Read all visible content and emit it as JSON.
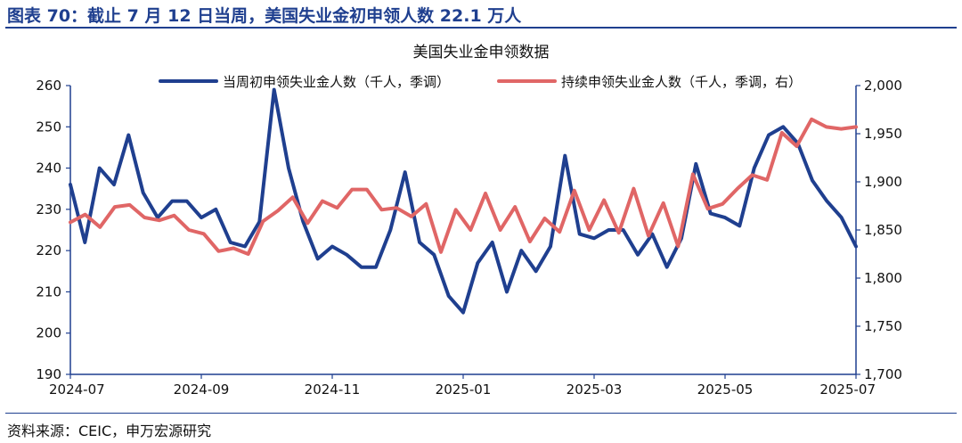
{
  "figure": {
    "title": "图表 70：截止 7 月 12 日当周，美国失业金初申领人数 22.1 万人",
    "source": "资料来源：CEIC，申万宏源研究"
  },
  "colors": {
    "initial": "#1f3f8f",
    "continuing": "#e06666",
    "axis": "#1f3f8f",
    "rule": "#1f3f8f"
  },
  "chart_data": {
    "type": "line",
    "title": "美国失业金申领数据",
    "x_tick_labels": [
      "2024-07",
      "2024-09",
      "2024-11",
      "2025-01",
      "2025-03",
      "2025-05",
      "2025-07"
    ],
    "y_left": {
      "min": 190,
      "max": 260,
      "ticks": [
        "190",
        "200",
        "210",
        "220",
        "230",
        "240",
        "250",
        "260"
      ]
    },
    "y_right": {
      "min": 1700,
      "max": 2000,
      "ticks": [
        "1,700",
        "1,750",
        "1,800",
        "1,850",
        "1,900",
        "1,950",
        "2,000"
      ]
    },
    "grid": false,
    "legend": "top",
    "series": [
      {
        "name": "当周初申领失业金人数（千人，季调）",
        "axis": "left",
        "values": [
          236,
          222,
          240,
          236,
          248,
          234,
          228,
          232,
          232,
          228,
          230,
          222,
          221,
          227,
          259,
          240,
          227,
          218,
          221,
          219,
          216,
          216,
          225,
          239,
          222,
          219,
          209,
          205,
          217,
          222,
          210,
          220,
          215,
          221,
          243,
          224,
          223,
          225,
          225,
          219,
          224,
          216,
          223,
          241,
          229,
          228,
          226,
          240,
          248,
          250,
          246,
          237,
          232,
          228,
          221
        ]
      },
      {
        "name": "持续申领失业金人数（千人，季调，右）",
        "axis": "right",
        "values": [
          1858,
          1866,
          1853,
          1874,
          1876,
          1863,
          1860,
          1865,
          1850,
          1846,
          1828,
          1831,
          1825,
          1859,
          1870,
          1884,
          1857,
          1880,
          1873,
          1892,
          1892,
          1871,
          1873,
          1864,
          1877,
          1827,
          1871,
          1850,
          1888,
          1850,
          1874,
          1838,
          1862,
          1848,
          1891,
          1850,
          1881,
          1847,
          1893,
          1844,
          1878,
          1833,
          1908,
          1872,
          1877,
          1893,
          1907,
          1902,
          1951,
          1937,
          1965,
          1957,
          1955,
          1957
        ]
      }
    ]
  }
}
